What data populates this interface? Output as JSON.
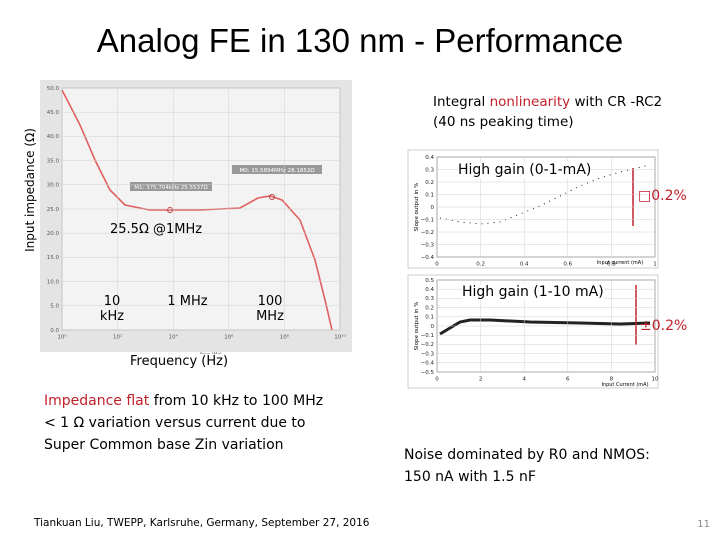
{
  "title": "Analog FE in 130 nm - Performance",
  "impedance_plot": {
    "y_label": "Input impedance (Ω)",
    "x_label": "Frequency (Hz)",
    "axis_caption": "freq (Hz)",
    "yticks": [
      "50.0",
      "45.0",
      "40.0",
      "35.0",
      "30.0",
      "25.0",
      "20.0",
      "15.0",
      "10.0",
      "5.0",
      "0.0"
    ],
    "xticks": [
      "10⁰",
      "10²",
      "10⁴",
      "10⁶",
      "10⁸",
      "10¹⁰"
    ],
    "markers": [
      "M1: 375.704kHz 25.5537Ω",
      "M0: 15.5894MHz 28.1852Ω"
    ],
    "annotation": "25.5Ω @1MHz",
    "freq_labels": [
      "10 kHz",
      "1 MHz",
      "100 MHz"
    ]
  },
  "linearity": {
    "heading": [
      "Integral ",
      "nonlinearity",
      " with CR -RC2 (40 ns peaking time)"
    ],
    "top": {
      "label": "High gain (0-1-mA)",
      "range": "□0.2%",
      "y_label": "Slope output in %",
      "x_label": "Input current (mA)",
      "yticks": [
        "0.4",
        "0.3",
        "0.2",
        "0.1",
        "0",
        "−0.1",
        "−0.2",
        "−0.3",
        "−0.4"
      ],
      "xticks": [
        "0",
        "0.2",
        "0.4",
        "0.6",
        "0.8",
        "1"
      ]
    },
    "bottom": {
      "label": "High gain (1-10 mA)",
      "range": "±0.2%",
      "y_label": "Slope output in %",
      "x_label": "Input Current (mA)",
      "yticks": [
        "0.5",
        "0.4",
        "0.3",
        "0.2",
        "0.1",
        "0",
        "−0.1",
        "−0.2",
        "−0.3",
        "−0.4",
        "−0.5"
      ],
      "xticks": [
        "0",
        "2",
        "4",
        "6",
        "8",
        "10"
      ]
    }
  },
  "notes": {
    "line1": [
      "Impedance flat",
      " from 10 kHz to 100 MHz"
    ],
    "line2": "< 1 Ω variation versus current due to",
    "line3": "Super Common base Zin variation"
  },
  "noise": {
    "line1": "Noise dominated by R0 and NMOS:",
    "line2": "150 nA with 1.5 nF"
  },
  "footer": {
    "citation": "Tiankuan Liu, TWEPP, Karlsruhe, Germany, September 27, 2016",
    "page": "11"
  }
}
